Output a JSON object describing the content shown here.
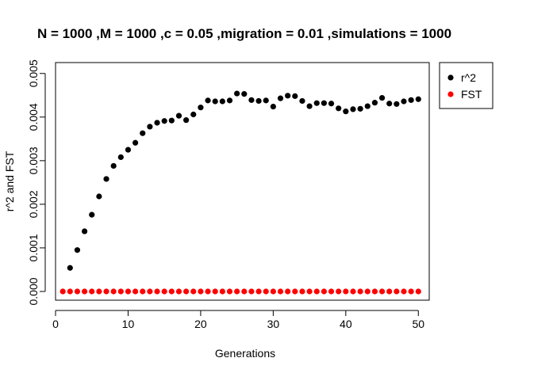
{
  "chart_data": {
    "type": "scatter",
    "title": "N = 1000 ,M = 1000 ,c = 0.05 ,migration = 0.01 ,simulations = 1000",
    "xlabel": "Generations",
    "ylabel": "r^2 and FST",
    "xlim": [
      0,
      51.5
    ],
    "ylim": [
      -0.0002,
      0.00525
    ],
    "xticks": [
      0,
      10,
      20,
      30,
      40,
      50
    ],
    "xtick_labels": [
      "0",
      "10",
      "20",
      "30",
      "40",
      "50"
    ],
    "yticks": [
      0,
      0.001,
      0.002,
      0.003,
      0.004,
      0.005
    ],
    "ytick_labels": [
      "0.000",
      "0.001",
      "0.002",
      "0.003",
      "0.004",
      "0.005"
    ],
    "grid": false,
    "legend_position": "top-right-outside",
    "series": [
      {
        "name": "r^2",
        "color": "#000000",
        "x": [
          2,
          3,
          4,
          5,
          6,
          7,
          8,
          9,
          10,
          11,
          12,
          13,
          14,
          15,
          16,
          17,
          18,
          19,
          20,
          21,
          22,
          23,
          24,
          25,
          26,
          27,
          28,
          29,
          30,
          31,
          32,
          33,
          34,
          35,
          36,
          37,
          38,
          39,
          40,
          41,
          42,
          43,
          44,
          45,
          46,
          47,
          48,
          49,
          50
        ],
        "y": [
          0.00054,
          0.00095,
          0.00138,
          0.00176,
          0.00218,
          0.00258,
          0.00288,
          0.00308,
          0.00325,
          0.00341,
          0.00363,
          0.00378,
          0.00387,
          0.00391,
          0.00392,
          0.00403,
          0.00393,
          0.00406,
          0.00422,
          0.00438,
          0.00436,
          0.00436,
          0.00438,
          0.00454,
          0.00453,
          0.00439,
          0.00437,
          0.00438,
          0.00424,
          0.00443,
          0.00449,
          0.00448,
          0.00437,
          0.00425,
          0.00432,
          0.00432,
          0.00431,
          0.0042,
          0.00413,
          0.00418,
          0.00419,
          0.00425,
          0.00433,
          0.00444,
          0.00431,
          0.0043,
          0.00436,
          0.00439,
          0.00441
        ]
      },
      {
        "name": "FST",
        "color": "#ff0000",
        "x": [
          1,
          2,
          3,
          4,
          5,
          6,
          7,
          8,
          9,
          10,
          11,
          12,
          13,
          14,
          15,
          16,
          17,
          18,
          19,
          20,
          21,
          22,
          23,
          24,
          25,
          26,
          27,
          28,
          29,
          30,
          31,
          32,
          33,
          34,
          35,
          36,
          37,
          38,
          39,
          40,
          41,
          42,
          43,
          44,
          45,
          46,
          47,
          48,
          49,
          50
        ],
        "y": [
          0,
          0,
          0,
          0,
          0,
          0,
          0,
          0,
          0,
          0,
          0,
          0,
          0,
          0,
          0,
          0,
          0,
          0,
          0,
          0,
          0,
          0,
          0,
          0,
          0,
          0,
          0,
          0,
          0,
          0,
          0,
          0,
          0,
          0,
          0,
          0,
          0,
          0,
          0,
          0,
          0,
          0,
          0,
          0,
          0,
          0,
          0,
          0,
          0,
          0
        ]
      }
    ]
  }
}
